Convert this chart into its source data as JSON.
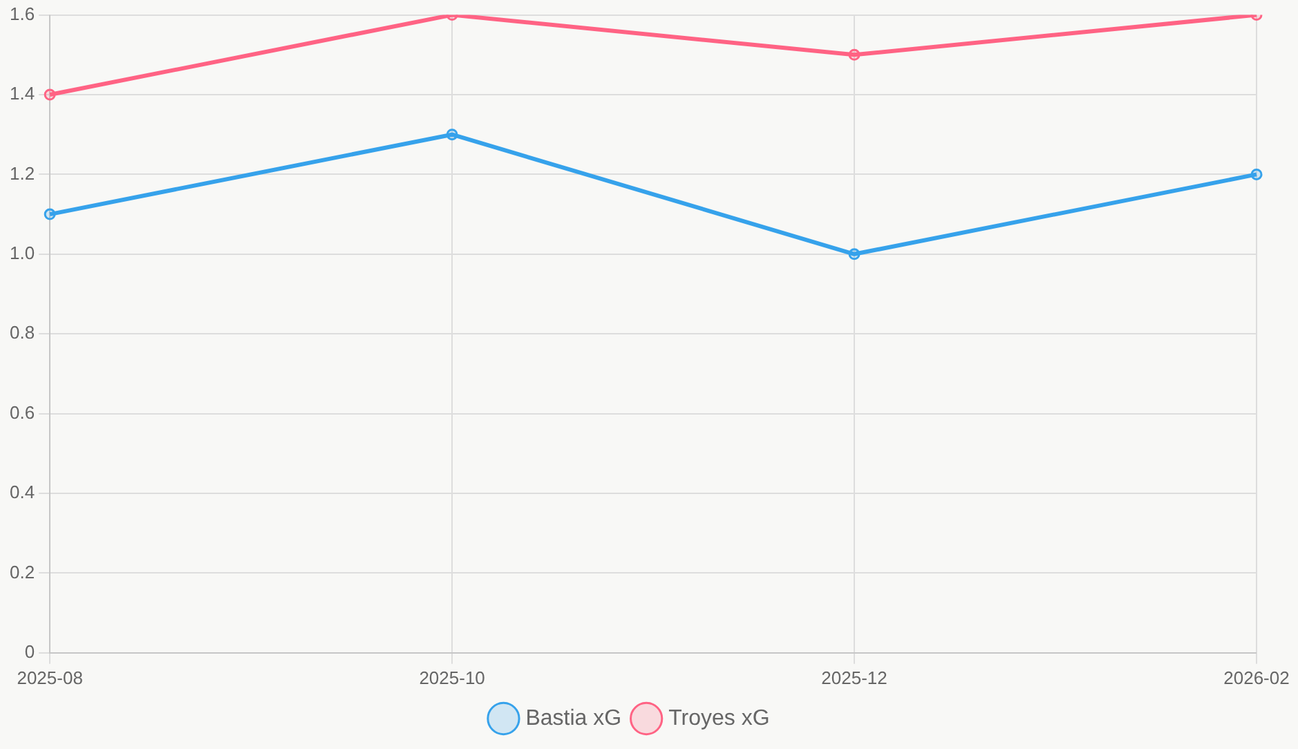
{
  "chart_data": {
    "type": "line",
    "categories": [
      "2025-08",
      "2025-10",
      "2025-12",
      "2026-02"
    ],
    "series": [
      {
        "name": "Bastia xG",
        "color": "#36a2eb",
        "values": [
          1.1,
          1.3,
          1.0,
          1.2
        ]
      },
      {
        "name": "Troyes xG",
        "color": "#ff6384",
        "values": [
          1.4,
          1.6,
          1.5,
          1.6
        ]
      }
    ],
    "ylim": [
      0,
      1.6
    ],
    "yticks": [
      0,
      {
        "value": 0.2,
        "label": "0.2"
      },
      {
        "value": 0.4,
        "label": "0.4"
      },
      {
        "value": 0.6,
        "label": "0.6"
      },
      {
        "value": 0.8,
        "label": "0.8"
      },
      {
        "value": 1,
        "label": "1.0"
      },
      {
        "value": 1.2,
        "label": "1.2"
      },
      {
        "value": 1.4,
        "label": "1.4"
      },
      {
        "value": 1.6,
        "label": "1.6"
      }
    ],
    "grid": true,
    "legend": "bottom",
    "marker": "circle",
    "line_style": "solid"
  }
}
